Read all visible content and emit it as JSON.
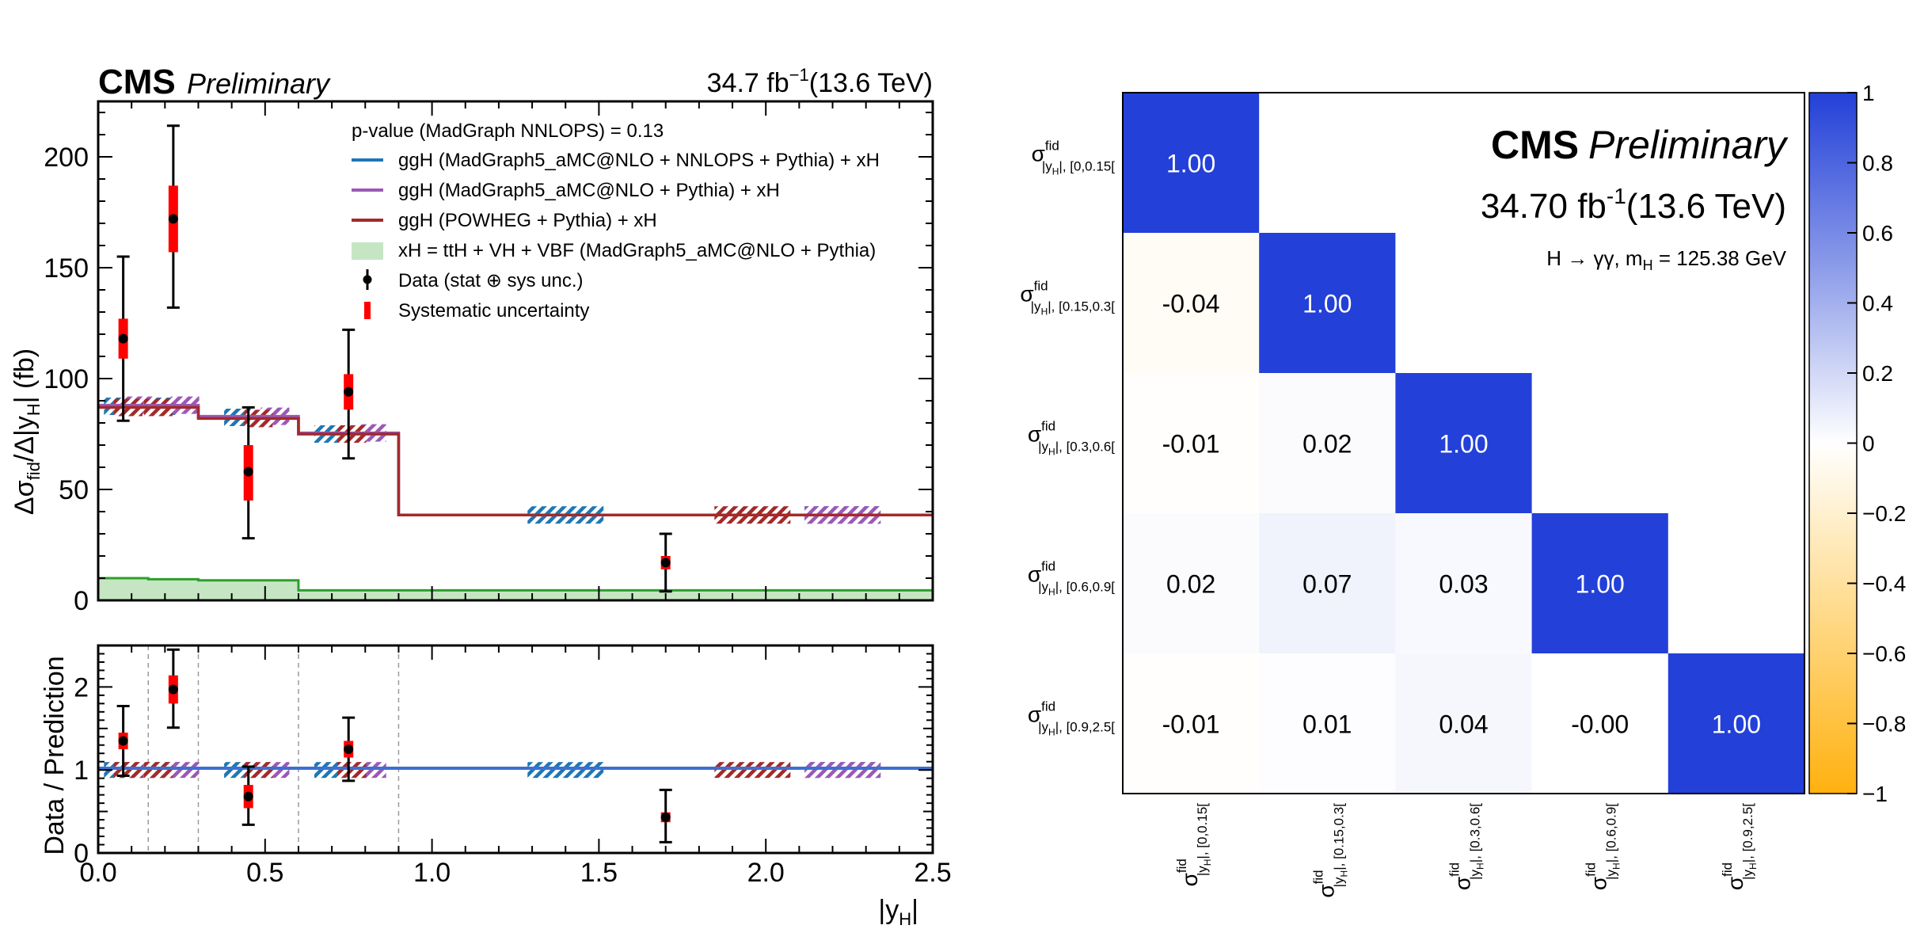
{
  "chart_data": [
    {
      "type": "line",
      "brand": "CMS",
      "status": "Preliminary",
      "lumi": "34.7 fb",
      "lumi_exp": "−1",
      "energy": "(13.6 TeV)",
      "ylabel": "Δσ",
      "ylabel_sub": "fid",
      "ylabel_rest": "/Δ|y",
      "ylabel_sub2": "H",
      "ylabel_end": "| (fb)",
      "xlabel": "|y",
      "xlabel_sub": "H",
      "xlabel_end": "|",
      "xlim": [
        0,
        2.5
      ],
      "ylim": [
        0,
        225
      ],
      "yticks": [
        0,
        50,
        100,
        150,
        200
      ],
      "xticks": [
        0.0,
        0.5,
        1.0,
        1.5,
        2.0,
        2.5
      ],
      "xtick_labels": [
        "0.0",
        "0.5",
        "1.0",
        "1.5",
        "2.0",
        "2.5"
      ],
      "bin_edges": [
        0,
        0.15,
        0.3,
        0.6,
        0.9,
        2.5
      ],
      "pvalue_text": "p-value (MadGraph NNLOPS) = 0.13",
      "legend": [
        {
          "label": "ggH (MadGraph5_aMC@NLO + NNLOPS + Pythia) + xH",
          "color": "#1f77b4",
          "kind": "line"
        },
        {
          "label": "ggH (MadGraph5_aMC@NLO + Pythia) + xH",
          "color": "#9b59b6",
          "kind": "line"
        },
        {
          "label": "ggH (POWHEG + Pythia) + xH",
          "color": "#a32a2a",
          "kind": "line"
        },
        {
          "label": "xH = ttH + VH + VBF (MadGraph5_aMC@NLO + Pythia)",
          "color": "#c6e6c3",
          "kind": "fill"
        },
        {
          "label": "Data (stat ⊕ sys unc.)",
          "color": "#000000",
          "kind": "point"
        },
        {
          "label": "Systematic uncertainty",
          "color": "#ff0000",
          "kind": "syst"
        }
      ],
      "series": [
        {
          "name": "ggH (MadGraph5_aMC@NLO + NNLOPS + Pythia) + xH",
          "values": [
            87.5,
            87.5,
            82.5,
            75,
            38.5
          ],
          "color": "#1f77b4"
        },
        {
          "name": "ggH (MadGraph5_aMC@NLO + Pythia) + xH",
          "values": [
            88,
            88,
            83,
            75.5,
            38.5
          ],
          "color": "#9b59b6"
        },
        {
          "name": "ggH (POWHEG + Pythia) + xH",
          "values": [
            87,
            87,
            82,
            75,
            38.5
          ],
          "color": "#a32a2a"
        },
        {
          "name": "xH = ttH + VH + VBF (MadGraph5_aMC@NLO + Pythia)",
          "values": [
            10,
            9.5,
            9,
            4.5,
            4.5
          ],
          "color": "#2ca02c"
        }
      ],
      "data_points": {
        "x": [
          0.075,
          0.225,
          0.45,
          0.75,
          1.7
        ],
        "y": [
          118,
          172,
          58,
          94,
          17
        ],
        "err_hi": [
          37,
          42,
          29,
          28,
          13
        ],
        "err_lo": [
          37,
          40,
          30,
          30,
          13
        ],
        "syst_hi": [
          9,
          15,
          12,
          8,
          3
        ],
        "syst_lo": [
          9,
          15,
          13,
          8,
          3
        ]
      },
      "hatch_centers": {
        "nnlops": [
          0.06,
          0.2,
          0.42,
          0.69,
          1.4,
          2.23
        ],
        "mg": [
          0.12,
          0.26,
          0.53,
          0.82,
          2.23
        ],
        "powheg": [
          0.09,
          0.18,
          0.48,
          0.76,
          1.96
        ]
      }
    },
    {
      "type": "line",
      "ylabel": "Data / Prediction",
      "ylim": [
        0,
        2.5
      ],
      "yticks": [
        0,
        1,
        2
      ],
      "ratio_points": {
        "x": [
          0.075,
          0.225,
          0.45,
          0.75,
          1.7
        ],
        "y": [
          1.35,
          1.97,
          0.68,
          1.25,
          0.43
        ],
        "err_hi": [
          0.42,
          0.48,
          0.36,
          0.38,
          0.33
        ],
        "err_lo": [
          0.42,
          0.46,
          0.34,
          0.38,
          0.3
        ],
        "syst_hi": [
          0.1,
          0.17,
          0.14,
          0.1,
          0.06
        ],
        "syst_lo": [
          0.1,
          0.17,
          0.14,
          0.1,
          0.06
        ]
      }
    },
    {
      "type": "heatmap",
      "brand": "CMS",
      "status": "Preliminary",
      "lumi": "34.70 fb",
      "lumi_exp": "-1",
      "energy": "(13.6 TeV)",
      "process": "H → γγ, m",
      "process_sub": "H",
      "process_end": " = 125.38 GeV",
      "labels": [
        "[0,0.15[",
        "[0.15,0.3[",
        "[0.3,0.6[",
        "[0.6,0.9[",
        "[0.9,2.5["
      ],
      "sigma": "σ",
      "sup": "fid",
      "sub_prefix": "|y",
      "sub_h": "H",
      "sub_mid": "|, ",
      "matrix": [
        [
          1.0,
          null,
          null,
          null,
          null
        ],
        [
          -0.04,
          1.0,
          null,
          null,
          null
        ],
        [
          -0.01,
          0.02,
          1.0,
          null,
          null
        ],
        [
          0.02,
          0.07,
          0.03,
          1.0,
          null
        ],
        [
          -0.01,
          0.01,
          0.04,
          -0.0,
          1.0
        ]
      ],
      "cell_text": [
        [
          "1.00",
          "",
          "",
          "",
          ""
        ],
        [
          "-0.04",
          "1.00",
          "",
          "",
          ""
        ],
        [
          "-0.01",
          "0.02",
          "1.00",
          "",
          ""
        ],
        [
          "0.02",
          "0.07",
          "0.03",
          "1.00",
          ""
        ],
        [
          "-0.01",
          "0.01",
          "0.04",
          "-0.00",
          "1.00"
        ]
      ],
      "zlim": [
        -1,
        1
      ],
      "colorbar_ticks": [
        1,
        0.8,
        0.6,
        0.4,
        0.2,
        0,
        -0.2,
        -0.4,
        -0.6,
        -0.8,
        -1
      ],
      "colorbar_labels": [
        "1",
        "0.8",
        "0.6",
        "0.4",
        "0.2",
        "0",
        "−0.2",
        "−0.4",
        "−0.6",
        "−0.8",
        "−1"
      ],
      "colors": {
        "positive": "#2340d8",
        "negative": "#ffb10f",
        "neutral": "#ffffff"
      }
    }
  ]
}
